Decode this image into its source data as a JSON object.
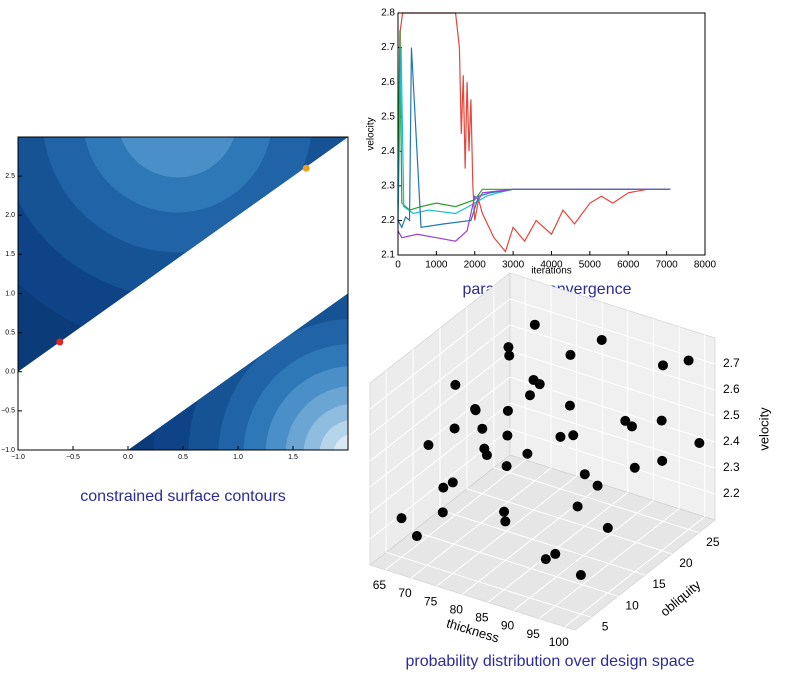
{
  "chart_data": [
    {
      "type": "contour",
      "title": "constrained surface contours",
      "xlim": [
        -1,
        2
      ],
      "ylim": [
        -1,
        3
      ],
      "xticks": [
        {
          "value": -1,
          "label": "−1.0"
        },
        {
          "value": -0.5,
          "label": "−0.5"
        },
        {
          "value": 0,
          "label": "0.0"
        },
        {
          "value": 0.5,
          "label": "0.5"
        },
        {
          "value": 1,
          "label": "1.0"
        },
        {
          "value": 1.5,
          "label": "1.5"
        }
      ],
      "yticks": [
        {
          "value": -1,
          "label": "−1.0"
        },
        {
          "value": -0.5,
          "label": "−0.5"
        },
        {
          "value": 0,
          "label": "0.0"
        },
        {
          "value": 0.5,
          "label": "0.5"
        },
        {
          "value": 1,
          "label": "1.0"
        },
        {
          "value": 1.5,
          "label": "1.5"
        },
        {
          "value": 2,
          "label": "2.0"
        },
        {
          "value": 2.5,
          "label": "2.5"
        }
      ],
      "series": [
        {
          "color": "#e3261f",
          "x": [
            -0.62
          ],
          "y": [
            0.38
          ]
        },
        {
          "color": "#f0a020",
          "x": [
            1.62
          ],
          "y": [
            2.6
          ]
        }
      ]
    },
    {
      "type": "line",
      "title": "parameter convergence",
      "xlabel": "iterations",
      "ylabel": "velocity",
      "xlim": [
        0,
        8000
      ],
      "ylim": [
        2.1,
        2.8
      ],
      "xticks": [
        0,
        1000,
        2000,
        3000,
        4000,
        5000,
        6000,
        7000,
        8000
      ],
      "yticks": [
        2.1,
        2.2,
        2.3,
        2.4,
        2.5,
        2.6,
        2.7,
        2.8
      ],
      "series": [
        {
          "color": "#e8453c",
          "x": [
            0,
            60,
            120,
            1500,
            1600,
            1650,
            1700,
            1750,
            1800,
            1850,
            1900,
            1950,
            2000,
            2100,
            2200,
            2500,
            2800,
            3000,
            3300,
            3600,
            4000,
            4300,
            4600,
            5000,
            5300,
            5600,
            6000,
            6500,
            7100
          ],
          "values": [
            2.25,
            2.75,
            2.8,
            2.8,
            2.7,
            2.45,
            2.62,
            2.35,
            2.6,
            2.4,
            2.55,
            2.3,
            2.2,
            2.26,
            2.22,
            2.15,
            2.11,
            2.18,
            2.14,
            2.2,
            2.16,
            2.23,
            2.19,
            2.25,
            2.27,
            2.25,
            2.28,
            2.29,
            2.29
          ]
        },
        {
          "color": "#2ca02c",
          "x": [
            0,
            50,
            100,
            300,
            600,
            1000,
            1500,
            2000,
            2200,
            2500,
            3000,
            5000,
            7100
          ],
          "values": [
            2.3,
            2.75,
            2.25,
            2.23,
            2.24,
            2.25,
            2.24,
            2.26,
            2.29,
            2.29,
            2.29,
            2.29,
            2.29
          ]
        },
        {
          "color": "#17becf",
          "x": [
            0,
            80,
            150,
            400,
            800,
            1500,
            2000,
            2300,
            2600,
            3000,
            7100
          ],
          "values": [
            2.2,
            2.7,
            2.24,
            2.22,
            2.23,
            2.22,
            2.25,
            2.27,
            2.28,
            2.29,
            2.29
          ]
        },
        {
          "color": "#1f77b4",
          "x": [
            0,
            100,
            200,
            300,
            350,
            600,
            1200,
            1900,
            2100,
            2400,
            3000,
            7100
          ],
          "values": [
            2.2,
            2.18,
            2.21,
            2.2,
            2.7,
            2.18,
            2.19,
            2.2,
            2.27,
            2.28,
            2.29,
            2.29
          ]
        },
        {
          "color": "#9b3fd6",
          "x": [
            0,
            100,
            500,
            1000,
            1500,
            1800,
            1900,
            2000,
            2100,
            2200,
            3000,
            4000,
            5000,
            7100
          ],
          "values": [
            2.17,
            2.15,
            2.16,
            2.15,
            2.14,
            2.17,
            2.22,
            2.27,
            2.26,
            2.28,
            2.29,
            2.29,
            2.29,
            2.29
          ]
        }
      ]
    },
    {
      "type": "scatter3d",
      "title": "probability distribution over design space",
      "xlabel": "thickness",
      "ylabel": "obliquity",
      "zlabel": "velocity",
      "xlim": [
        62,
        102
      ],
      "ylim": [
        2,
        28
      ],
      "zlim": [
        2.1,
        2.8
      ],
      "xticks": [
        65,
        70,
        75,
        80,
        85,
        90,
        95,
        100
      ],
      "yticks": [
        5,
        10,
        15,
        20,
        25
      ],
      "zticks": [
        2.2,
        2.3,
        2.4,
        2.5,
        2.6,
        2.7
      ],
      "color": "#000000",
      "x": [
        65,
        65,
        65,
        65,
        65,
        68,
        68,
        68,
        68,
        68,
        70,
        70,
        70,
        70,
        72,
        72,
        72,
        72,
        75,
        75,
        75,
        75,
        78,
        78,
        78,
        80,
        80,
        82,
        85,
        85,
        88,
        90,
        90,
        92,
        95,
        95,
        95,
        98,
        98,
        100,
        100,
        100,
        100,
        100,
        100
      ],
      "y": [
        5,
        10,
        15,
        20,
        25,
        5,
        12,
        18,
        22,
        26,
        8,
        14,
        20,
        25,
        6,
        12,
        18,
        24,
        5,
        15,
        20,
        25,
        8,
        16,
        24,
        10,
        22,
        26,
        5,
        20,
        15,
        8,
        24,
        12,
        5,
        18,
        25,
        10,
        22,
        5,
        10,
        15,
        20,
        25,
        27
      ],
      "z": [
        2.25,
        2.45,
        2.6,
        2.35,
        2.55,
        2.2,
        2.5,
        2.3,
        2.65,
        2.4,
        2.35,
        2.55,
        2.45,
        2.7,
        2.3,
        2.6,
        2.4,
        2.5,
        2.45,
        2.35,
        2.6,
        2.3,
        2.55,
        2.4,
        2.65,
        2.25,
        2.5,
        2.7,
        2.4,
        2.3,
        2.55,
        2.2,
        2.45,
        2.35,
        2.3,
        2.6,
        2.7,
        2.5,
        2.4,
        2.25,
        2.35,
        2.5,
        2.6,
        2.75,
        2.4
      ]
    }
  ]
}
